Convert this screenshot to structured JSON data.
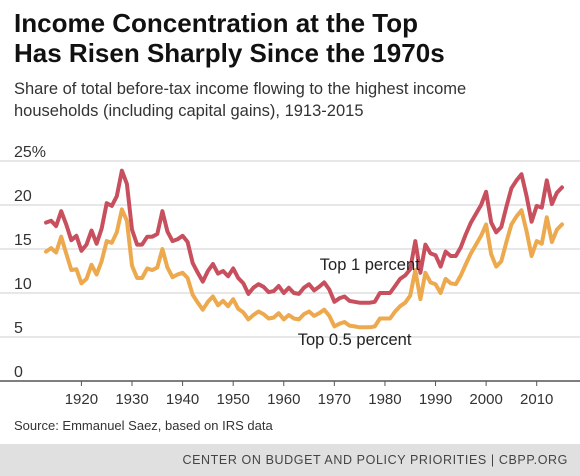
{
  "title_line1": "Income Concentration at the Top",
  "title_line2": "Has Risen Sharply Since the 1970s",
  "subtitle_line1": "Share of total before-tax income flowing to the highest income",
  "subtitle_line2": "households (including capital gains), 1913-2015",
  "source": "Source: Emmanuel Saez, based on IRS data",
  "footer": "CENTER ON BUDGET AND POLICY PRIORITIES | CBPP.ORG",
  "chart_data": {
    "type": "line",
    "title": "Income Concentration at the Top Has Risen Sharply Since the 1970s",
    "subtitle": "Share of total before-tax income flowing to the highest income households (including capital gains), 1913-2015",
    "xlabel": "",
    "ylabel": "",
    "xlim": [
      1913,
      2015
    ],
    "ylim": [
      0,
      25
    ],
    "y_ticks": [
      0,
      5,
      10,
      15,
      20,
      25
    ],
    "y_tick_labels": [
      "0",
      "5",
      "10",
      "15",
      "20",
      "25%"
    ],
    "x_ticks": [
      1920,
      1930,
      1940,
      1950,
      1960,
      1970,
      1980,
      1990,
      2000,
      2010
    ],
    "x_tick_labels": [
      "1920",
      "1930",
      "1940",
      "1950",
      "1960",
      "1970",
      "1980",
      "1990",
      "2000",
      "2010"
    ],
    "grid": "horizontal",
    "legend": "none",
    "x": [
      1913,
      1914,
      1915,
      1916,
      1917,
      1918,
      1919,
      1920,
      1921,
      1922,
      1923,
      1924,
      1925,
      1926,
      1927,
      1928,
      1929,
      1930,
      1931,
      1932,
      1933,
      1934,
      1935,
      1936,
      1937,
      1938,
      1939,
      1940,
      1941,
      1942,
      1943,
      1944,
      1945,
      1946,
      1947,
      1948,
      1949,
      1950,
      1951,
      1952,
      1953,
      1954,
      1955,
      1956,
      1957,
      1958,
      1959,
      1960,
      1961,
      1962,
      1963,
      1964,
      1965,
      1966,
      1967,
      1968,
      1969,
      1970,
      1971,
      1972,
      1973,
      1974,
      1975,
      1976,
      1977,
      1978,
      1979,
      1980,
      1981,
      1982,
      1983,
      1984,
      1985,
      1986,
      1987,
      1988,
      1989,
      1990,
      1991,
      1992,
      1993,
      1994,
      1995,
      1996,
      1997,
      1998,
      1999,
      2000,
      2001,
      2002,
      2003,
      2004,
      2005,
      2006,
      2007,
      2008,
      2009,
      2010,
      2011,
      2012,
      2013,
      2014,
      2015
    ],
    "series": [
      {
        "name": "Top 1 percent",
        "color": "#c8505e",
        "values": [
          18.0,
          18.2,
          17.6,
          19.3,
          17.8,
          16.0,
          16.5,
          14.8,
          15.5,
          17.1,
          15.6,
          17.3,
          20.2,
          19.9,
          21.0,
          23.9,
          22.4,
          17.2,
          15.5,
          15.5,
          16.4,
          16.4,
          16.7,
          19.3,
          17.0,
          15.9,
          16.1,
          16.5,
          15.8,
          13.4,
          12.3,
          11.3,
          12.5,
          13.3,
          12.2,
          12.5,
          11.9,
          12.8,
          11.7,
          11.1,
          9.9,
          10.6,
          11.0,
          10.7,
          10.1,
          10.2,
          10.8,
          10.0,
          10.6,
          10.0,
          9.9,
          10.6,
          11.0,
          10.3,
          10.7,
          11.2,
          10.4,
          9.0,
          9.4,
          9.6,
          9.1,
          9.0,
          8.9,
          8.9,
          8.9,
          9.0,
          10.0,
          10.0,
          10.0,
          10.8,
          11.6,
          12.0,
          12.7,
          15.9,
          12.3,
          15.5,
          14.5,
          14.3,
          13.0,
          14.7,
          14.2,
          14.2,
          15.2,
          16.7,
          18.0,
          19.0,
          20.0,
          21.5,
          18.0,
          16.9,
          17.5,
          19.8,
          21.9,
          22.8,
          23.5,
          21.0,
          18.1,
          19.9,
          19.7,
          22.8,
          20.1,
          21.4,
          22.0
        ]
      },
      {
        "name": "Top 0.5 percent",
        "color": "#eda94d",
        "values": [
          14.7,
          15.1,
          14.6,
          16.4,
          14.5,
          12.6,
          12.7,
          11.1,
          11.6,
          13.2,
          12.1,
          13.6,
          15.9,
          15.7,
          16.9,
          19.5,
          18.2,
          13.1,
          11.7,
          11.7,
          12.8,
          12.6,
          12.9,
          15.0,
          12.9,
          11.8,
          12.1,
          12.3,
          11.7,
          9.8,
          8.9,
          8.1,
          9.0,
          9.6,
          8.6,
          9.1,
          8.5,
          9.3,
          8.2,
          7.8,
          7.0,
          7.5,
          7.9,
          7.6,
          7.1,
          7.2,
          7.7,
          7.0,
          7.5,
          7.1,
          7.0,
          7.6,
          7.9,
          7.4,
          7.7,
          8.1,
          7.4,
          6.2,
          6.5,
          6.7,
          6.3,
          6.2,
          6.1,
          6.1,
          6.1,
          6.2,
          7.1,
          7.1,
          7.1,
          7.9,
          8.5,
          8.9,
          9.7,
          12.6,
          9.3,
          12.3,
          11.2,
          11.0,
          10.0,
          11.6,
          11.1,
          11.0,
          12.0,
          13.3,
          14.5,
          15.5,
          16.5,
          17.8,
          14.4,
          13.0,
          13.6,
          15.8,
          17.8,
          18.7,
          19.4,
          17.0,
          14.2,
          15.9,
          15.6,
          18.6,
          15.8,
          17.2,
          17.8
        ]
      }
    ],
    "annotations": [
      {
        "text": "Top 1 percent",
        "x": 1977,
        "y": 12.6
      },
      {
        "text": "Top 0.5 percent",
        "x": 1974,
        "y": 4.1
      }
    ]
  }
}
